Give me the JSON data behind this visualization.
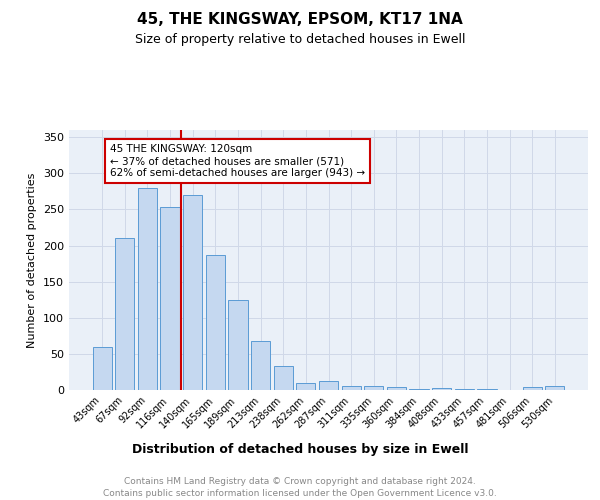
{
  "title": "45, THE KINGSWAY, EPSOM, KT17 1NA",
  "subtitle": "Size of property relative to detached houses in Ewell",
  "xlabel": "Distribution of detached houses by size in Ewell",
  "ylabel": "Number of detached properties",
  "categories": [
    "43sqm",
    "67sqm",
    "92sqm",
    "116sqm",
    "140sqm",
    "165sqm",
    "189sqm",
    "213sqm",
    "238sqm",
    "262sqm",
    "287sqm",
    "311sqm",
    "335sqm",
    "360sqm",
    "384sqm",
    "408sqm",
    "433sqm",
    "457sqm",
    "481sqm",
    "506sqm",
    "530sqm"
  ],
  "values": [
    60,
    210,
    280,
    253,
    270,
    187,
    125,
    68,
    33,
    10,
    13,
    5,
    5,
    4,
    2,
    3,
    1,
    2,
    0,
    4,
    5
  ],
  "bar_color": "#c5d8f0",
  "bar_edge_color": "#5b9bd5",
  "annotation_text_line1": "45 THE KINGSWAY: 120sqm",
  "annotation_text_line2": "← 37% of detached houses are smaller (571)",
  "annotation_text_line3": "62% of semi-detached houses are larger (943) →",
  "red_line_color": "#cc0000",
  "annotation_box_color": "#ffffff",
  "annotation_box_edge": "#cc0000",
  "grid_color": "#d0d8e8",
  "background_color": "#eaf0f8",
  "ylim": [
    0,
    360
  ],
  "yticks": [
    0,
    50,
    100,
    150,
    200,
    250,
    300,
    350
  ],
  "footer_line1": "Contains HM Land Registry data © Crown copyright and database right 2024.",
  "footer_line2": "Contains public sector information licensed under the Open Government Licence v3.0."
}
